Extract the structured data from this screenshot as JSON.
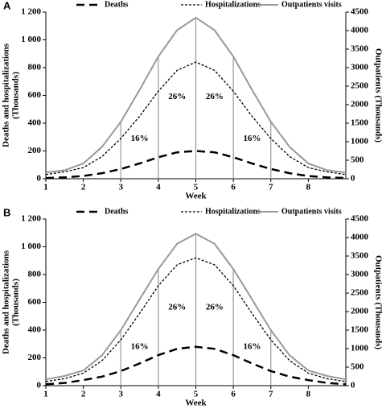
{
  "chart_data": [
    {
      "type": "line",
      "panel_label": "A",
      "xlabel": "Week",
      "ylabel": [
        "Deaths and hospitalizations",
        "(Thousands)"
      ],
      "y2label": "Outpatients (Thousands)",
      "x": [
        1,
        1.5,
        2,
        2.5,
        3,
        3.5,
        4,
        4.5,
        5,
        5.5,
        6,
        6.5,
        7,
        7.5,
        8,
        8.5,
        9
      ],
      "series": [
        {
          "name": "Deaths",
          "color": "#000000",
          "style": "long-dash",
          "values": [
            5,
            10,
            20,
            40,
            70,
            110,
            155,
            190,
            200,
            190,
            155,
            110,
            70,
            40,
            20,
            10,
            5
          ]
        },
        {
          "name": "Hospitalizations",
          "color": "#000000",
          "style": "short-dash",
          "values": [
            30,
            50,
            80,
            160,
            290,
            450,
            630,
            780,
            840,
            780,
            630,
            450,
            290,
            160,
            80,
            50,
            30
          ]
        },
        {
          "name": "Outpatients visits",
          "color": "#999999",
          "style": "solid",
          "axis": "y2",
          "values": [
            170,
            230,
            410,
            860,
            1540,
            2400,
            3300,
            4010,
            4350,
            4010,
            3300,
            2400,
            1540,
            860,
            410,
            230,
            170
          ]
        }
      ],
      "vlines": [
        3,
        4,
        5,
        6,
        7
      ],
      "annotations": [
        "16%",
        "26%",
        "26%",
        "16%"
      ],
      "xlim": [
        1,
        9
      ],
      "xticks": [
        1,
        2,
        3,
        4,
        5,
        6,
        7,
        8
      ],
      "ylim": [
        0,
        1200
      ],
      "yticks": [
        0,
        200,
        400,
        600,
        800,
        {
          "value": 1000,
          "label": "1 000"
        },
        {
          "value": 1200,
          "label": "1 200"
        }
      ],
      "y2lim": [
        0,
        4500
      ],
      "y2ticks": [
        0,
        500,
        1000,
        1500,
        2000,
        2500,
        3000,
        3500,
        4000,
        4500
      ]
    },
    {
      "type": "line",
      "panel_label": "B",
      "xlabel": "Week",
      "ylabel": [
        "Deaths and hospitalizations",
        "(Thousands)"
      ],
      "y2label": "Outpatients (Thousands)",
      "x": [
        1,
        1.5,
        2,
        2.5,
        3,
        3.5,
        4,
        4.5,
        5,
        5.5,
        6,
        6.5,
        7,
        7.5,
        8,
        8.5,
        9
      ],
      "series": [
        {
          "name": "Deaths",
          "color": "#000000",
          "style": "long-dash",
          "values": [
            10,
            20,
            40,
            65,
            105,
            160,
            220,
            265,
            280,
            265,
            220,
            160,
            105,
            65,
            40,
            20,
            10
          ]
        },
        {
          "name": "Hospitalizations",
          "color": "#000000",
          "style": "short-dash",
          "values": [
            30,
            50,
            90,
            180,
            330,
            520,
            720,
            870,
            920,
            870,
            720,
            520,
            330,
            180,
            90,
            50,
            30
          ]
        },
        {
          "name": "Outpatients visits",
          "color": "#999999",
          "style": "solid",
          "axis": "y2",
          "values": [
            170,
            260,
            410,
            820,
            1500,
            2330,
            3150,
            3830,
            4100,
            3830,
            3150,
            2330,
            1500,
            820,
            410,
            260,
            170
          ]
        }
      ],
      "vlines": [
        3,
        4,
        5,
        6,
        7
      ],
      "annotations": [
        "16%",
        "26%",
        "26%",
        "16%"
      ],
      "xlim": [
        1,
        9
      ],
      "xticks": [
        1,
        2,
        3,
        4,
        5,
        6,
        7,
        8
      ],
      "ylim": [
        0,
        1200
      ],
      "yticks": [
        0,
        200,
        400,
        600,
        800,
        {
          "value": 1000,
          "label": "1 000"
        },
        {
          "value": 1200,
          "label": "1 200"
        }
      ],
      "y2lim": [
        0,
        4500
      ],
      "y2ticks": [
        0,
        500,
        1000,
        1500,
        2000,
        2500,
        3000,
        3500,
        4000,
        4500
      ]
    }
  ]
}
